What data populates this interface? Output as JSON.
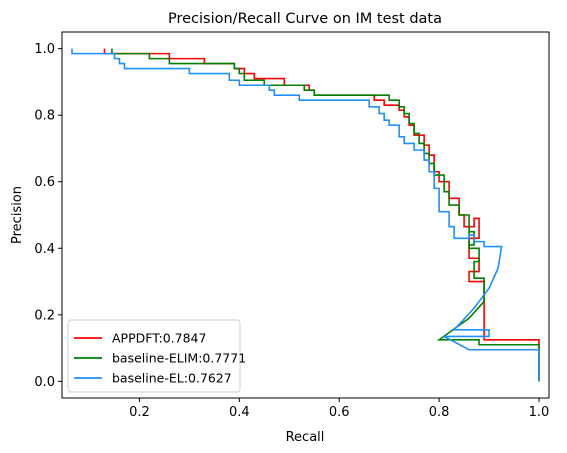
{
  "chart_data": {
    "type": "line",
    "title": "Precision/Recall Curve on IM test data",
    "xlabel": "Recall",
    "ylabel": "Precision",
    "xlim": [
      0.045,
      1.02
    ],
    "ylim": [
      -0.05,
      1.05
    ],
    "xticks": [
      0.2,
      0.4,
      0.6,
      0.8,
      1.0
    ],
    "xtick_labels": [
      "0.2",
      "0.4",
      "0.6",
      "0.8",
      "1.0"
    ],
    "yticks": [
      0.0,
      0.2,
      0.4,
      0.6,
      0.8,
      1.0
    ],
    "ytick_labels": [
      "0.0",
      "0.2",
      "0.4",
      "0.6",
      "0.8",
      "1.0"
    ],
    "grid": false,
    "legend": "lower-left",
    "series": [
      {
        "name": "APPDFT:0.7847",
        "color": "#ff0000",
        "points": [
          [
            0.13,
            1.0
          ],
          [
            0.13,
            0.985
          ],
          [
            0.26,
            0.985
          ],
          [
            0.26,
            0.97
          ],
          [
            0.33,
            0.97
          ],
          [
            0.33,
            0.955
          ],
          [
            0.39,
            0.955
          ],
          [
            0.39,
            0.94
          ],
          [
            0.41,
            0.94
          ],
          [
            0.41,
            0.925
          ],
          [
            0.43,
            0.925
          ],
          [
            0.43,
            0.91
          ],
          [
            0.49,
            0.91
          ],
          [
            0.49,
            0.89
          ],
          [
            0.54,
            0.89
          ],
          [
            0.54,
            0.875
          ],
          [
            0.55,
            0.875
          ],
          [
            0.55,
            0.86
          ],
          [
            0.67,
            0.86
          ],
          [
            0.67,
            0.845
          ],
          [
            0.69,
            0.845
          ],
          [
            0.69,
            0.83
          ],
          [
            0.72,
            0.83
          ],
          [
            0.72,
            0.815
          ],
          [
            0.73,
            0.815
          ],
          [
            0.73,
            0.795
          ],
          [
            0.74,
            0.795
          ],
          [
            0.74,
            0.77
          ],
          [
            0.75,
            0.77
          ],
          [
            0.75,
            0.74
          ],
          [
            0.77,
            0.74
          ],
          [
            0.77,
            0.71
          ],
          [
            0.78,
            0.71
          ],
          [
            0.78,
            0.68
          ],
          [
            0.79,
            0.68
          ],
          [
            0.79,
            0.63
          ],
          [
            0.8,
            0.63
          ],
          [
            0.8,
            0.6
          ],
          [
            0.82,
            0.6
          ],
          [
            0.82,
            0.55
          ],
          [
            0.84,
            0.55
          ],
          [
            0.84,
            0.5
          ],
          [
            0.85,
            0.5
          ],
          [
            0.85,
            0.465
          ],
          [
            0.87,
            0.465
          ],
          [
            0.87,
            0.49
          ],
          [
            0.88,
            0.49
          ],
          [
            0.88,
            0.43
          ],
          [
            0.86,
            0.43
          ],
          [
            0.86,
            0.37
          ],
          [
            0.88,
            0.37
          ],
          [
            0.88,
            0.33
          ],
          [
            0.86,
            0.33
          ],
          [
            0.86,
            0.3
          ],
          [
            0.89,
            0.3
          ],
          [
            0.89,
            0.125
          ],
          [
            1.0,
            0.125
          ],
          [
            1.0,
            0.0
          ]
        ]
      },
      {
        "name": "baseline-ELIM:0.7771",
        "color": "#008000",
        "points": [
          [
            0.145,
            1.0
          ],
          [
            0.145,
            0.985
          ],
          [
            0.22,
            0.985
          ],
          [
            0.22,
            0.97
          ],
          [
            0.26,
            0.97
          ],
          [
            0.26,
            0.955
          ],
          [
            0.39,
            0.955
          ],
          [
            0.39,
            0.94
          ],
          [
            0.4,
            0.94
          ],
          [
            0.4,
            0.925
          ],
          [
            0.41,
            0.925
          ],
          [
            0.41,
            0.905
          ],
          [
            0.45,
            0.905
          ],
          [
            0.45,
            0.89
          ],
          [
            0.53,
            0.89
          ],
          [
            0.53,
            0.875
          ],
          [
            0.55,
            0.875
          ],
          [
            0.55,
            0.86
          ],
          [
            0.7,
            0.86
          ],
          [
            0.7,
            0.845
          ],
          [
            0.72,
            0.845
          ],
          [
            0.72,
            0.825
          ],
          [
            0.73,
            0.825
          ],
          [
            0.73,
            0.805
          ],
          [
            0.74,
            0.805
          ],
          [
            0.74,
            0.775
          ],
          [
            0.75,
            0.775
          ],
          [
            0.75,
            0.745
          ],
          [
            0.76,
            0.745
          ],
          [
            0.76,
            0.715
          ],
          [
            0.77,
            0.715
          ],
          [
            0.77,
            0.685
          ],
          [
            0.78,
            0.685
          ],
          [
            0.78,
            0.655
          ],
          [
            0.79,
            0.655
          ],
          [
            0.79,
            0.62
          ],
          [
            0.81,
            0.62
          ],
          [
            0.81,
            0.57
          ],
          [
            0.82,
            0.57
          ],
          [
            0.82,
            0.53
          ],
          [
            0.84,
            0.53
          ],
          [
            0.84,
            0.5
          ],
          [
            0.86,
            0.5
          ],
          [
            0.86,
            0.41
          ],
          [
            0.87,
            0.41
          ],
          [
            0.87,
            0.45
          ],
          [
            0.86,
            0.45
          ],
          [
            0.86,
            0.4
          ],
          [
            0.88,
            0.4
          ],
          [
            0.88,
            0.36
          ],
          [
            0.87,
            0.36
          ],
          [
            0.87,
            0.31
          ],
          [
            0.89,
            0.31
          ],
          [
            0.89,
            0.24
          ],
          [
            0.86,
            0.19
          ],
          [
            0.8,
            0.125
          ],
          [
            0.88,
            0.125
          ],
          [
            0.88,
            0.11
          ],
          [
            1.0,
            0.11
          ],
          [
            1.0,
            0.0
          ]
        ]
      },
      {
        "name": "baseline-EL:0.7627",
        "color": "#1e90ff",
        "points": [
          [
            0.065,
            1.0
          ],
          [
            0.065,
            0.985
          ],
          [
            0.15,
            0.985
          ],
          [
            0.15,
            0.97
          ],
          [
            0.16,
            0.97
          ],
          [
            0.16,
            0.955
          ],
          [
            0.17,
            0.955
          ],
          [
            0.17,
            0.94
          ],
          [
            0.3,
            0.94
          ],
          [
            0.3,
            0.925
          ],
          [
            0.38,
            0.925
          ],
          [
            0.38,
            0.905
          ],
          [
            0.4,
            0.905
          ],
          [
            0.4,
            0.89
          ],
          [
            0.46,
            0.89
          ],
          [
            0.46,
            0.875
          ],
          [
            0.47,
            0.875
          ],
          [
            0.47,
            0.86
          ],
          [
            0.52,
            0.86
          ],
          [
            0.52,
            0.845
          ],
          [
            0.66,
            0.845
          ],
          [
            0.66,
            0.825
          ],
          [
            0.68,
            0.825
          ],
          [
            0.68,
            0.805
          ],
          [
            0.69,
            0.805
          ],
          [
            0.69,
            0.785
          ],
          [
            0.7,
            0.785
          ],
          [
            0.7,
            0.77
          ],
          [
            0.72,
            0.77
          ],
          [
            0.72,
            0.735
          ],
          [
            0.73,
            0.735
          ],
          [
            0.73,
            0.715
          ],
          [
            0.75,
            0.715
          ],
          [
            0.75,
            0.695
          ],
          [
            0.77,
            0.695
          ],
          [
            0.77,
            0.665
          ],
          [
            0.78,
            0.665
          ],
          [
            0.78,
            0.63
          ],
          [
            0.79,
            0.63
          ],
          [
            0.79,
            0.58
          ],
          [
            0.8,
            0.58
          ],
          [
            0.8,
            0.51
          ],
          [
            0.82,
            0.51
          ],
          [
            0.82,
            0.465
          ],
          [
            0.83,
            0.465
          ],
          [
            0.83,
            0.43
          ],
          [
            0.86,
            0.43
          ],
          [
            0.86,
            0.44
          ],
          [
            0.87,
            0.44
          ],
          [
            0.87,
            0.42
          ],
          [
            0.89,
            0.42
          ],
          [
            0.89,
            0.405
          ],
          [
            0.925,
            0.405
          ],
          [
            0.918,
            0.34
          ],
          [
            0.9,
            0.28
          ],
          [
            0.87,
            0.22
          ],
          [
            0.83,
            0.155
          ],
          [
            0.9,
            0.155
          ],
          [
            0.9,
            0.135
          ],
          [
            0.81,
            0.135
          ],
          [
            0.86,
            0.095
          ],
          [
            1.0,
            0.095
          ],
          [
            1.0,
            0.0
          ]
        ]
      }
    ]
  }
}
